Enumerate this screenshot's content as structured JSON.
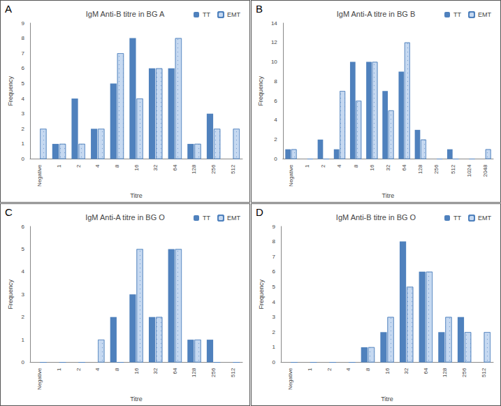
{
  "chart_data": [
    {
      "type": "bar",
      "panel": "A",
      "title": "IgM Anti-B titre in BG A",
      "x_label": "Titre",
      "y_label": "Frequency",
      "categories": [
        "Negative",
        "1",
        "2",
        "4",
        "8",
        "16",
        "32",
        "64",
        "128",
        "256",
        "512"
      ],
      "series": [
        {
          "name": "TT",
          "color": "#4f81bd",
          "values": [
            0,
            1,
            4,
            2,
            5,
            8,
            6,
            6,
            1,
            3,
            0
          ]
        },
        {
          "name": "EMT",
          "color": "#c6d9f1",
          "values": [
            2,
            1,
            1,
            2,
            7,
            4,
            6,
            8,
            1,
            2,
            2
          ]
        }
      ],
      "ylim": [
        0,
        9
      ],
      "yticks": [
        0,
        1,
        2,
        3,
        4,
        5,
        6,
        7,
        8,
        9
      ],
      "grid": false,
      "legend": "top-right"
    },
    {
      "type": "bar",
      "panel": "B",
      "title": "IgM Anti-A titre in BG B",
      "x_label": "Titre",
      "y_label": "Frequency",
      "categories": [
        "Negative",
        "1",
        "2",
        "4",
        "8",
        "16",
        "32",
        "64",
        "128",
        "256",
        "512",
        "1024",
        "2048"
      ],
      "series": [
        {
          "name": "TT",
          "color": "#4f81bd",
          "values": [
            1,
            0,
            2,
            1,
            10,
            10,
            7,
            9,
            3,
            0,
            1,
            0,
            0
          ]
        },
        {
          "name": "EMT",
          "color": "#c6d9f1",
          "values": [
            1,
            0,
            0,
            7,
            6,
            10,
            5,
            12,
            2,
            0,
            0,
            0,
            1
          ]
        }
      ],
      "ylim": [
        0,
        14
      ],
      "yticks": [
        0,
        2,
        4,
        6,
        8,
        10,
        12,
        14
      ],
      "grid": false,
      "legend": "top-right"
    },
    {
      "type": "bar",
      "panel": "C",
      "title": "IgM Anti-A titre in BG O",
      "x_label": "Titre",
      "y_label": "Frequency",
      "categories": [
        "Negative",
        "1",
        "2",
        "4",
        "8",
        "16",
        "32",
        "64",
        "128",
        "256",
        "512"
      ],
      "series": [
        {
          "name": "TT",
          "color": "#4f81bd",
          "values": [
            0,
            0,
            0,
            0,
            2,
            3,
            2,
            5,
            1,
            1,
            0
          ]
        },
        {
          "name": "EMT",
          "color": "#c6d9f1",
          "values": [
            0,
            0,
            0,
            1,
            0,
            5,
            2,
            5,
            1,
            0,
            0
          ]
        }
      ],
      "ylim": [
        0,
        6
      ],
      "yticks": [
        0,
        1,
        2,
        3,
        4,
        5,
        6
      ],
      "grid": false,
      "legend": "top-right"
    },
    {
      "type": "bar",
      "panel": "D",
      "title": "IgM Anti-B titre in BG O",
      "x_label": "Titre",
      "y_label": "Frequency",
      "categories": [
        "Negative",
        "1",
        "2",
        "4",
        "8",
        "16",
        "32",
        "64",
        "128",
        "256",
        "512"
      ],
      "series": [
        {
          "name": "TT",
          "color": "#4f81bd",
          "values": [
            0,
            0,
            0,
            0,
            1,
            2,
            8,
            6,
            2,
            3,
            0
          ]
        },
        {
          "name": "EMT",
          "color": "#c6d9f1",
          "values": [
            0,
            0,
            0,
            0,
            1,
            3,
            5,
            6,
            3,
            2,
            2
          ]
        }
      ],
      "ylim": [
        0,
        9
      ],
      "yticks": [
        0,
        1,
        2,
        3,
        4,
        5,
        6,
        7,
        8,
        9
      ],
      "grid": false,
      "legend": "top-right"
    }
  ]
}
